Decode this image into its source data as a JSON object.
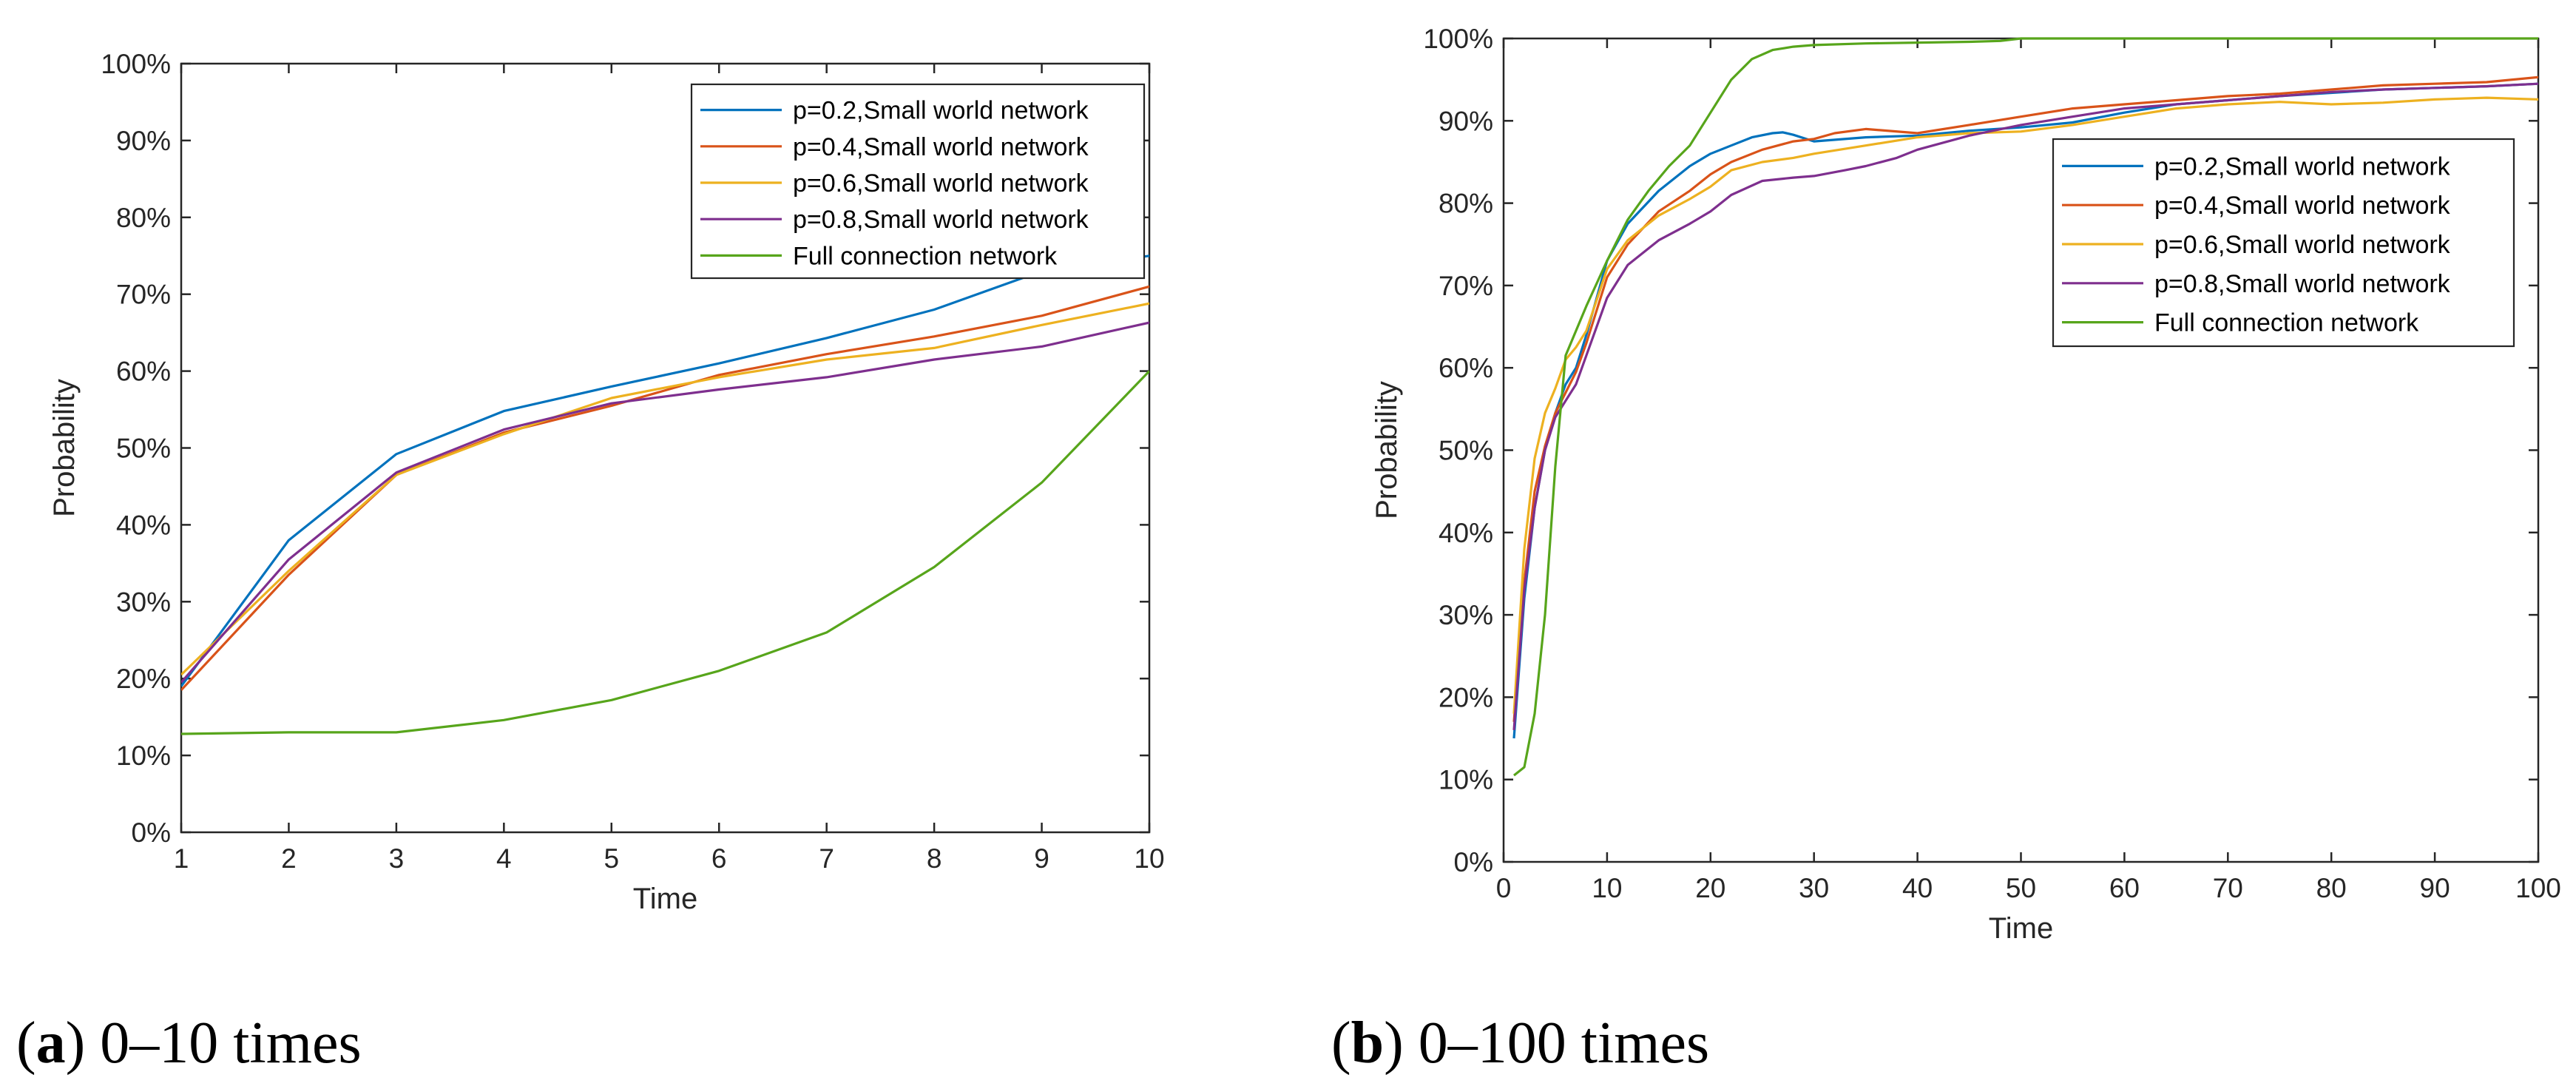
{
  "figure": {
    "caption_a": {
      "letter": "a",
      "text": " 0–10 times"
    },
    "caption_b": {
      "letter": "b",
      "text": " 0–100 times"
    }
  },
  "colors": {
    "p02": "#0072BD",
    "p04": "#D95319",
    "p06": "#EDB120",
    "p08": "#7E2F8E",
    "full": "#57A51B"
  },
  "chart_data": [
    {
      "id": "a",
      "type": "line",
      "xlabel": "Time",
      "ylabel": "Probability",
      "xlim": [
        1,
        10
      ],
      "ylim": [
        0,
        100
      ],
      "xticks": [
        1,
        2,
        3,
        4,
        5,
        6,
        7,
        8,
        9,
        10
      ],
      "yticks": [
        0,
        10,
        20,
        30,
        40,
        50,
        60,
        70,
        80,
        90,
        100
      ],
      "ytick_labels": [
        "0%",
        "10%",
        "20%",
        "30%",
        "40%",
        "50%",
        "60%",
        "70%",
        "80%",
        "90%",
        "100%"
      ],
      "legend_position": "top-right",
      "x": [
        1,
        2,
        3,
        4,
        5,
        6,
        7,
        8,
        9,
        10
      ],
      "series": [
        {
          "name": "p=0.2,Small world network",
          "color_key": "p02",
          "values": [
            19,
            38,
            49.2,
            54.8,
            58,
            61,
            64.3,
            68,
            73,
            75
          ]
        },
        {
          "name": "p=0.4,Small world network",
          "color_key": "p04",
          "values": [
            18.5,
            33.5,
            46.5,
            52,
            55.5,
            59.5,
            62.2,
            64.5,
            67.2,
            71
          ]
        },
        {
          "name": "p=0.6,Small world network",
          "color_key": "p06",
          "values": [
            20.5,
            34,
            46.5,
            51.8,
            56.5,
            59.2,
            61.5,
            63,
            66,
            68.8
          ]
        },
        {
          "name": "p=0.8,Small world network",
          "color_key": "p08",
          "values": [
            19.5,
            35.5,
            46.8,
            52.4,
            55.8,
            57.6,
            59.2,
            61.5,
            63.2,
            66.3
          ]
        },
        {
          "name": "Full connection network",
          "color_key": "full",
          "values": [
            12.8,
            13,
            13,
            14.6,
            17.2,
            21,
            26,
            34.5,
            45.5,
            60
          ]
        }
      ]
    },
    {
      "id": "b",
      "type": "line",
      "xlabel": "Time",
      "ylabel": "Probability",
      "xlim": [
        0,
        100
      ],
      "ylim": [
        0,
        100
      ],
      "xticks": [
        0,
        10,
        20,
        30,
        40,
        50,
        60,
        70,
        80,
        90,
        100
      ],
      "yticks": [
        0,
        10,
        20,
        30,
        40,
        50,
        60,
        70,
        80,
        90,
        100
      ],
      "ytick_labels": [
        "0%",
        "10%",
        "20%",
        "30%",
        "40%",
        "50%",
        "60%",
        "70%",
        "80%",
        "90%",
        "100%"
      ],
      "legend_position": "right",
      "series": [
        {
          "name": "p=0.2,Small world network",
          "color_key": "p02",
          "x": [
            1,
            2,
            3,
            4,
            5,
            6,
            7,
            8,
            10,
            12,
            15,
            18,
            20,
            22,
            24,
            26,
            27,
            28,
            30,
            35,
            40,
            45,
            50,
            55,
            60,
            65,
            70,
            75,
            80,
            85,
            90,
            95,
            100
          ],
          "values": [
            15,
            32,
            43,
            50,
            54.5,
            58,
            60,
            64,
            73,
            77.5,
            81.5,
            84.5,
            86,
            87,
            88,
            88.5,
            88.6,
            88.3,
            87.5,
            88,
            88.2,
            88.8,
            89.2,
            89.8,
            91,
            92,
            92.5,
            93,
            93.4,
            93.8,
            94,
            94.2,
            94.5
          ]
        },
        {
          "name": "p=0.4,Small world network",
          "color_key": "p04",
          "x": [
            1,
            2,
            3,
            4,
            5,
            6,
            7,
            8,
            10,
            12,
            15,
            18,
            20,
            22,
            25,
            28,
            30,
            32,
            35,
            40,
            45,
            50,
            55,
            60,
            65,
            70,
            75,
            80,
            85,
            90,
            95,
            100
          ],
          "values": [
            17,
            34,
            45,
            50.5,
            54.5,
            57,
            59.5,
            63,
            71,
            75,
            79,
            81.5,
            83.5,
            85,
            86.5,
            87.5,
            87.8,
            88.5,
            89,
            88.5,
            89.5,
            90.5,
            91.5,
            92,
            92.5,
            93,
            93.3,
            93.8,
            94.3,
            94.5,
            94.7,
            95.3
          ]
        },
        {
          "name": "p=0.6,Small world network",
          "color_key": "p06",
          "x": [
            1,
            2,
            3,
            4,
            5,
            6,
            7,
            8,
            10,
            12,
            15,
            18,
            20,
            22,
            25,
            28,
            30,
            35,
            40,
            45,
            50,
            55,
            60,
            65,
            70,
            75,
            80,
            85,
            90,
            95,
            100
          ],
          "values": [
            18,
            38,
            49,
            54.5,
            57.5,
            61,
            62.5,
            64.5,
            72,
            75.5,
            78.5,
            80.5,
            82,
            84,
            85,
            85.5,
            86,
            87,
            88,
            88.5,
            88.7,
            89.5,
            90.5,
            91.5,
            92,
            92.3,
            92,
            92.2,
            92.6,
            92.8,
            92.6
          ]
        },
        {
          "name": "p=0.8,Small world network",
          "color_key": "p08",
          "x": [
            1,
            2,
            3,
            4,
            5,
            6,
            7,
            8,
            10,
            12,
            15,
            18,
            20,
            22,
            25,
            28,
            30,
            33,
            35,
            38,
            40,
            45,
            50,
            55,
            60,
            65,
            70,
            75,
            80,
            85,
            90,
            95,
            100
          ],
          "values": [
            16,
            33,
            43,
            50,
            54,
            56,
            58,
            61.5,
            68.5,
            72.5,
            75.5,
            77.5,
            79,
            81,
            82.7,
            83.1,
            83.3,
            84,
            84.5,
            85.5,
            86.5,
            88.2,
            89.5,
            90.5,
            91.5,
            92,
            92.5,
            93,
            93.5,
            93.8,
            94,
            94.2,
            94.5
          ]
        },
        {
          "name": "Full connection network",
          "color_key": "full",
          "x": [
            1,
            2,
            3,
            4,
            5,
            6,
            8,
            10,
            12,
            14,
            16,
            18,
            20,
            22,
            24,
            26,
            28,
            30,
            35,
            40,
            45,
            48,
            50,
            55,
            60,
            70,
            80,
            90,
            100
          ],
          "values": [
            10.5,
            11.5,
            18,
            30,
            48,
            61.5,
            67.5,
            73,
            78,
            81.5,
            84.5,
            87,
            91,
            95,
            97.5,
            98.6,
            99,
            99.2,
            99.4,
            99.5,
            99.6,
            99.7,
            100,
            100,
            100,
            100,
            100,
            100,
            100
          ]
        }
      ]
    }
  ]
}
